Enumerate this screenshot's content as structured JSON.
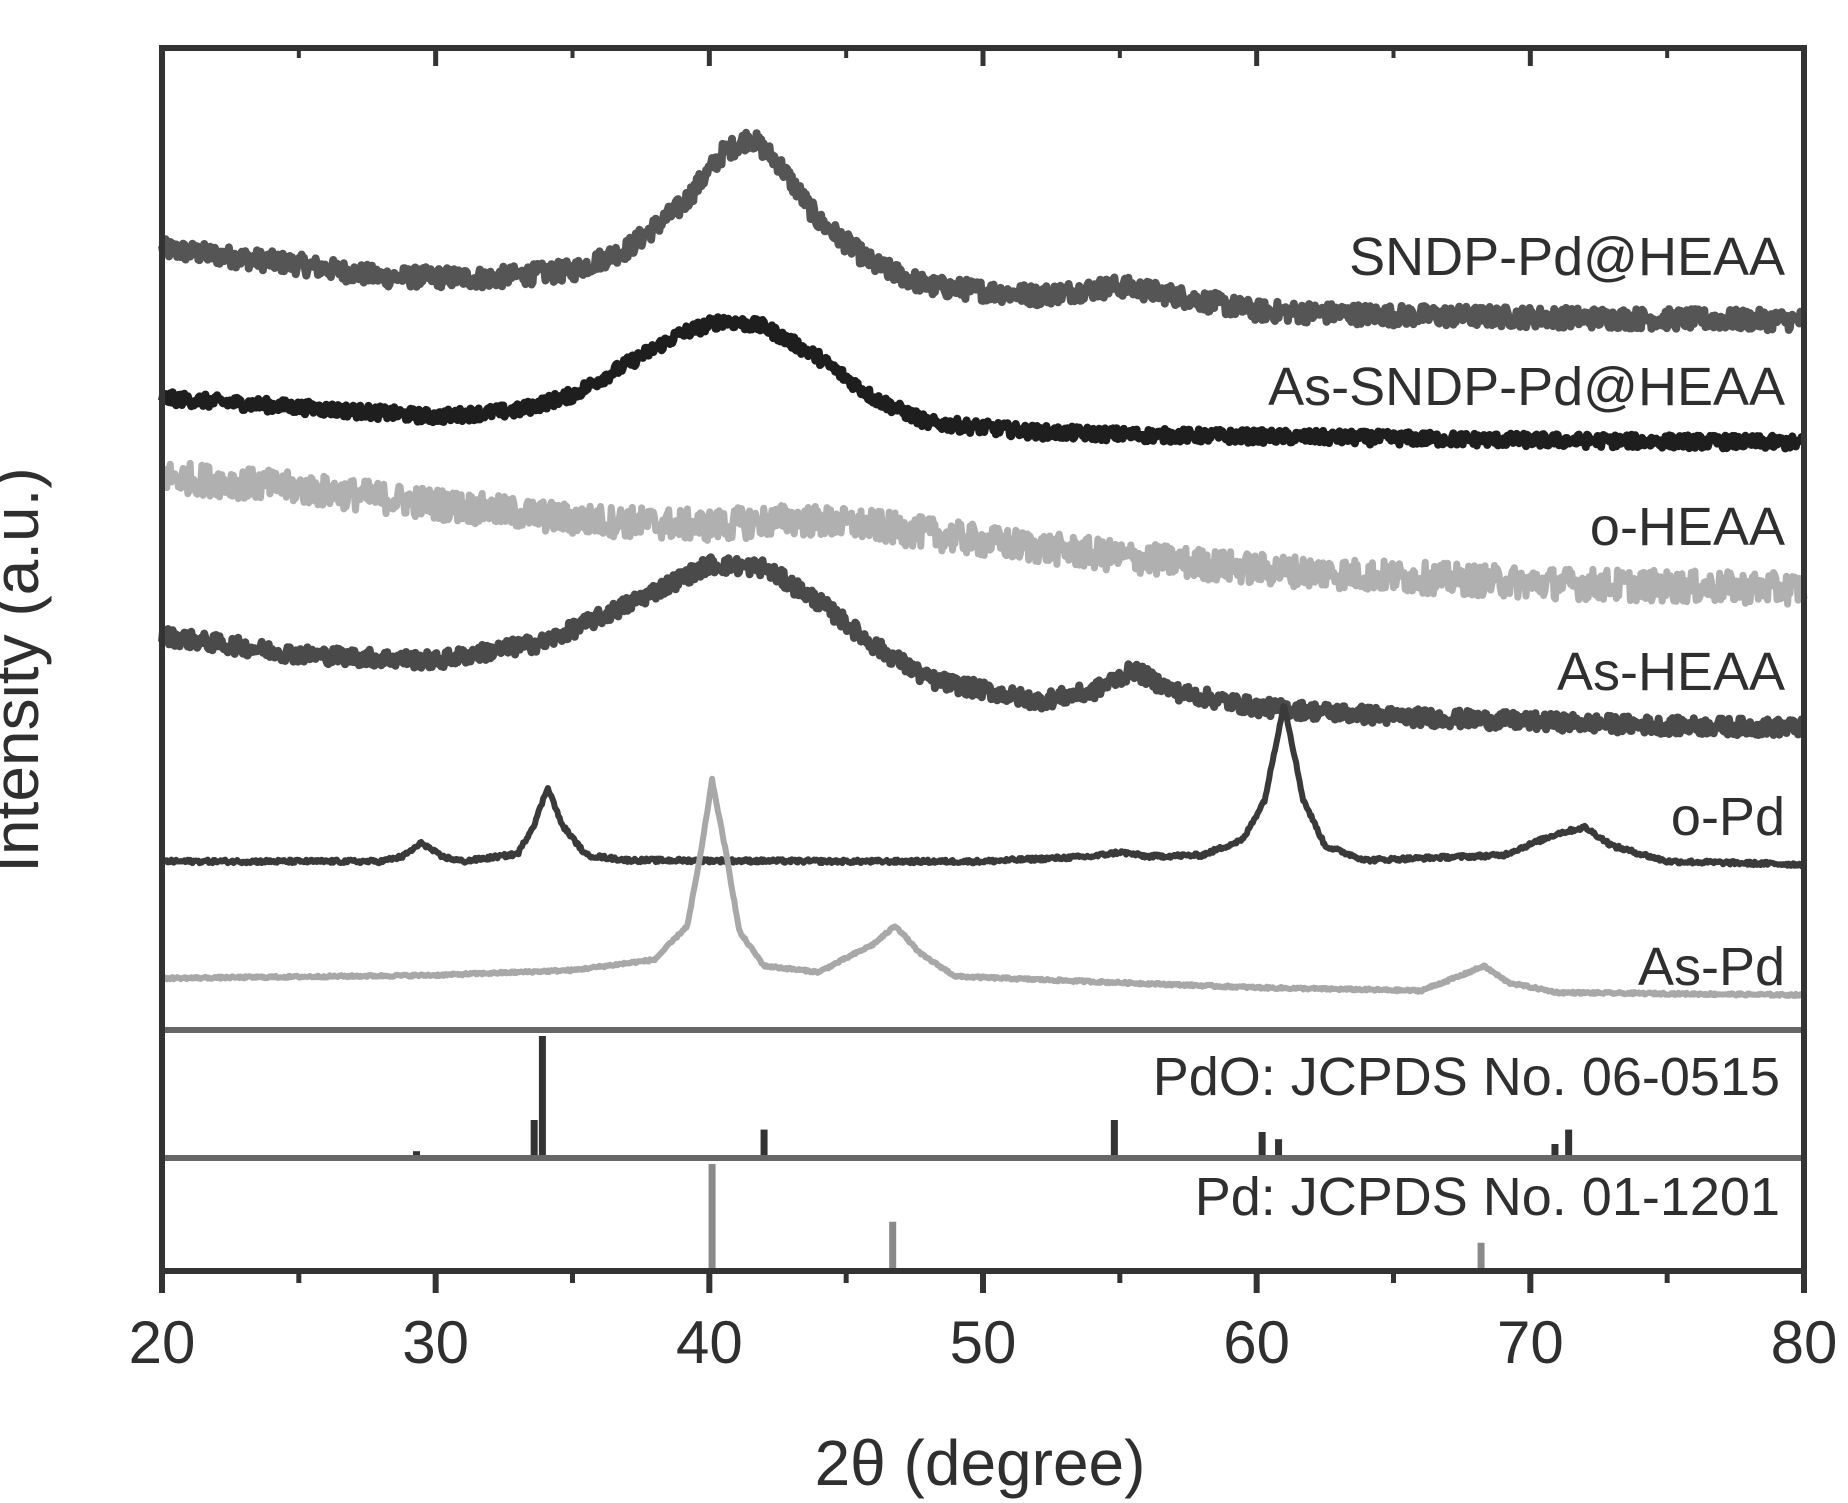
{
  "chart_data": {
    "type": "line",
    "title": "",
    "xlabel": "2θ (degree)",
    "ylabel": "Intensity (a.u.)",
    "xlim": [
      20,
      80
    ],
    "x_ticks": [
      "20",
      "30",
      "40",
      "50",
      "60",
      "70",
      "80"
    ],
    "y_ticks": [],
    "grid": false,
    "legend": "inline labels at right of each trace",
    "series": [
      {
        "name": "SNDP-Pd@HEAA",
        "color": "#555555",
        "noise": 0.55,
        "points": [
          [
            20,
            1.55
          ],
          [
            25,
            1.3
          ],
          [
            28,
            1.1
          ],
          [
            32,
            1.08
          ],
          [
            35,
            1.2
          ],
          [
            37,
            1.55
          ],
          [
            39,
            2.25
          ],
          [
            40.5,
            3.1
          ],
          [
            41.5,
            3.35
          ],
          [
            42.5,
            2.95
          ],
          [
            44,
            2.0
          ],
          [
            46,
            1.3
          ],
          [
            48,
            0.95
          ],
          [
            52,
            0.8
          ],
          [
            55,
            0.95
          ],
          [
            57,
            0.8
          ],
          [
            60,
            0.55
          ],
          [
            65,
            0.48
          ],
          [
            70,
            0.45
          ],
          [
            75,
            0.42
          ],
          [
            80,
            0.4
          ]
        ]
      },
      {
        "name": "As-SNDP-Pd@HEAA",
        "color": "#1e1e1e",
        "noise": 0.35,
        "points": [
          [
            20,
            1.0
          ],
          [
            25,
            0.85
          ],
          [
            30,
            0.7
          ],
          [
            33,
            0.8
          ],
          [
            35,
            1.05
          ],
          [
            37,
            1.55
          ],
          [
            39,
            2.05
          ],
          [
            40.5,
            2.25
          ],
          [
            42,
            2.15
          ],
          [
            44,
            1.65
          ],
          [
            46,
            1.0
          ],
          [
            48,
            0.6
          ],
          [
            52,
            0.45
          ],
          [
            56,
            0.4
          ],
          [
            60,
            0.38
          ],
          [
            70,
            0.32
          ],
          [
            80,
            0.28
          ]
        ]
      },
      {
        "name": "o-HEAA",
        "color": "#b0b0b0",
        "noise": 0.85,
        "points": [
          [
            20,
            2.0
          ],
          [
            25,
            1.8
          ],
          [
            30,
            1.55
          ],
          [
            35,
            1.3
          ],
          [
            40,
            1.2
          ],
          [
            43,
            1.3
          ],
          [
            46,
            1.2
          ],
          [
            50,
            0.95
          ],
          [
            55,
            0.7
          ],
          [
            60,
            0.5
          ],
          [
            65,
            0.38
          ],
          [
            70,
            0.28
          ],
          [
            75,
            0.22
          ],
          [
            80,
            0.18
          ]
        ]
      },
      {
        "name": "As-HEAA",
        "color": "#4a4a4a",
        "noise": 0.45,
        "points": [
          [
            20,
            1.6
          ],
          [
            25,
            1.3
          ],
          [
            30,
            1.2
          ],
          [
            34,
            1.5
          ],
          [
            37,
            2.1
          ],
          [
            40,
            2.75
          ],
          [
            42,
            2.7
          ],
          [
            44,
            2.15
          ],
          [
            46,
            1.45
          ],
          [
            48,
            0.9
          ],
          [
            52,
            0.55
          ],
          [
            54,
            0.7
          ],
          [
            55.5,
            1.05
          ],
          [
            57,
            0.7
          ],
          [
            60,
            0.45
          ],
          [
            65,
            0.3
          ],
          [
            70,
            0.22
          ],
          [
            75,
            0.15
          ],
          [
            80,
            0.12
          ]
        ]
      },
      {
        "name": "o-Pd",
        "color": "#3a3a3a",
        "noise": 0.1,
        "points": [
          [
            20,
            0.3
          ],
          [
            28,
            0.3
          ],
          [
            28.8,
            0.38
          ],
          [
            29.5,
            0.6
          ],
          [
            30.2,
            0.38
          ],
          [
            31,
            0.3
          ],
          [
            33,
            0.42
          ],
          [
            33.6,
            0.9
          ],
          [
            34.1,
            1.5
          ],
          [
            34.6,
            0.9
          ],
          [
            35.5,
            0.4
          ],
          [
            37,
            0.32
          ],
          [
            45,
            0.3
          ],
          [
            50,
            0.3
          ],
          [
            54,
            0.38
          ],
          [
            55,
            0.45
          ],
          [
            56,
            0.38
          ],
          [
            58,
            0.4
          ],
          [
            59.5,
            0.65
          ],
          [
            60.3,
            1.3
          ],
          [
            61,
            2.85
          ],
          [
            61.7,
            1.3
          ],
          [
            62.5,
            0.55
          ],
          [
            64,
            0.32
          ],
          [
            69,
            0.4
          ],
          [
            71,
            0.75
          ],
          [
            72,
            0.85
          ],
          [
            73,
            0.55
          ],
          [
            75,
            0.3
          ],
          [
            80,
            0.25
          ]
        ]
      },
      {
        "name": "As-Pd",
        "color": "#a8a8a8",
        "noise": 0.06,
        "points": [
          [
            20,
            0.35
          ],
          [
            30,
            0.4
          ],
          [
            35,
            0.48
          ],
          [
            38,
            0.65
          ],
          [
            39.2,
            1.2
          ],
          [
            39.7,
            2.4
          ],
          [
            40.1,
            3.55
          ],
          [
            40.6,
            2.4
          ],
          [
            41.1,
            1.1
          ],
          [
            42,
            0.55
          ],
          [
            44,
            0.45
          ],
          [
            46,
            0.9
          ],
          [
            46.8,
            1.2
          ],
          [
            47.7,
            0.75
          ],
          [
            49,
            0.38
          ],
          [
            55,
            0.28
          ],
          [
            60,
            0.2
          ],
          [
            66,
            0.15
          ],
          [
            67.5,
            0.4
          ],
          [
            68.3,
            0.55
          ],
          [
            69.2,
            0.28
          ],
          [
            71,
            0.12
          ],
          [
            80,
            0.08
          ]
        ]
      }
    ],
    "reference_patterns": [
      {
        "name": "PdO: JCPDS No. 06-0515",
        "color": "#333333",
        "lines": [
          {
            "x": 29.3,
            "intensity": 0.04
          },
          {
            "x": 33.6,
            "intensity": 0.3
          },
          {
            "x": 33.9,
            "intensity": 1.0
          },
          {
            "x": 42.0,
            "intensity": 0.22
          },
          {
            "x": 54.8,
            "intensity": 0.3
          },
          {
            "x": 60.2,
            "intensity": 0.2
          },
          {
            "x": 60.8,
            "intensity": 0.14
          },
          {
            "x": 70.9,
            "intensity": 0.1
          },
          {
            "x": 71.4,
            "intensity": 0.22
          }
        ]
      },
      {
        "name": "Pd: JCPDS No. 01-1201",
        "color": "#8a8a8a",
        "lines": [
          {
            "x": 40.1,
            "intensity": 1.0
          },
          {
            "x": 46.7,
            "intensity": 0.45
          },
          {
            "x": 68.2,
            "intensity": 0.25
          }
        ]
      }
    ]
  }
}
